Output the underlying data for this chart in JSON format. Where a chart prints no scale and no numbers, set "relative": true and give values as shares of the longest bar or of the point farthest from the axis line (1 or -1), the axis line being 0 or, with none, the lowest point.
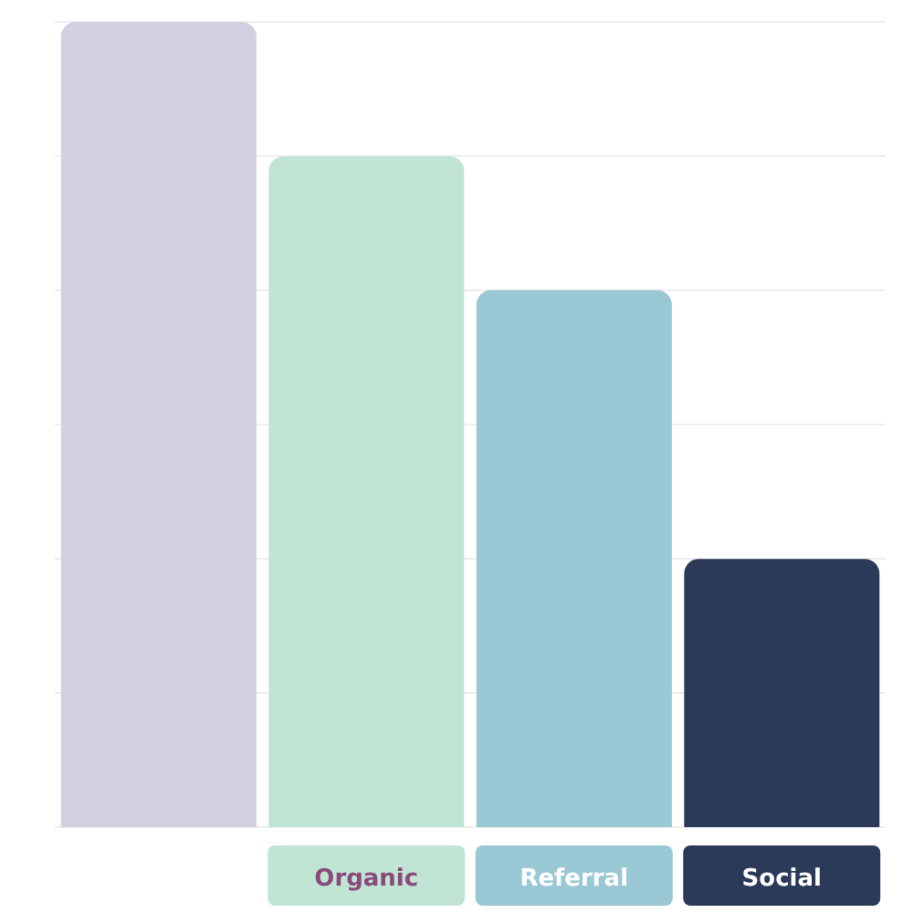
{
  "chart_data": {
    "type": "bar",
    "relative": true,
    "grid": "y",
    "categories": [
      null,
      "Organic",
      "Referral",
      "Social"
    ],
    "values": [
      1,
      0.833,
      0.667,
      0.333
    ],
    "colors": [
      "#d4cfe0",
      "#c0e5d5",
      "#9ac8d5",
      "#2c3a5a"
    ]
  }
}
